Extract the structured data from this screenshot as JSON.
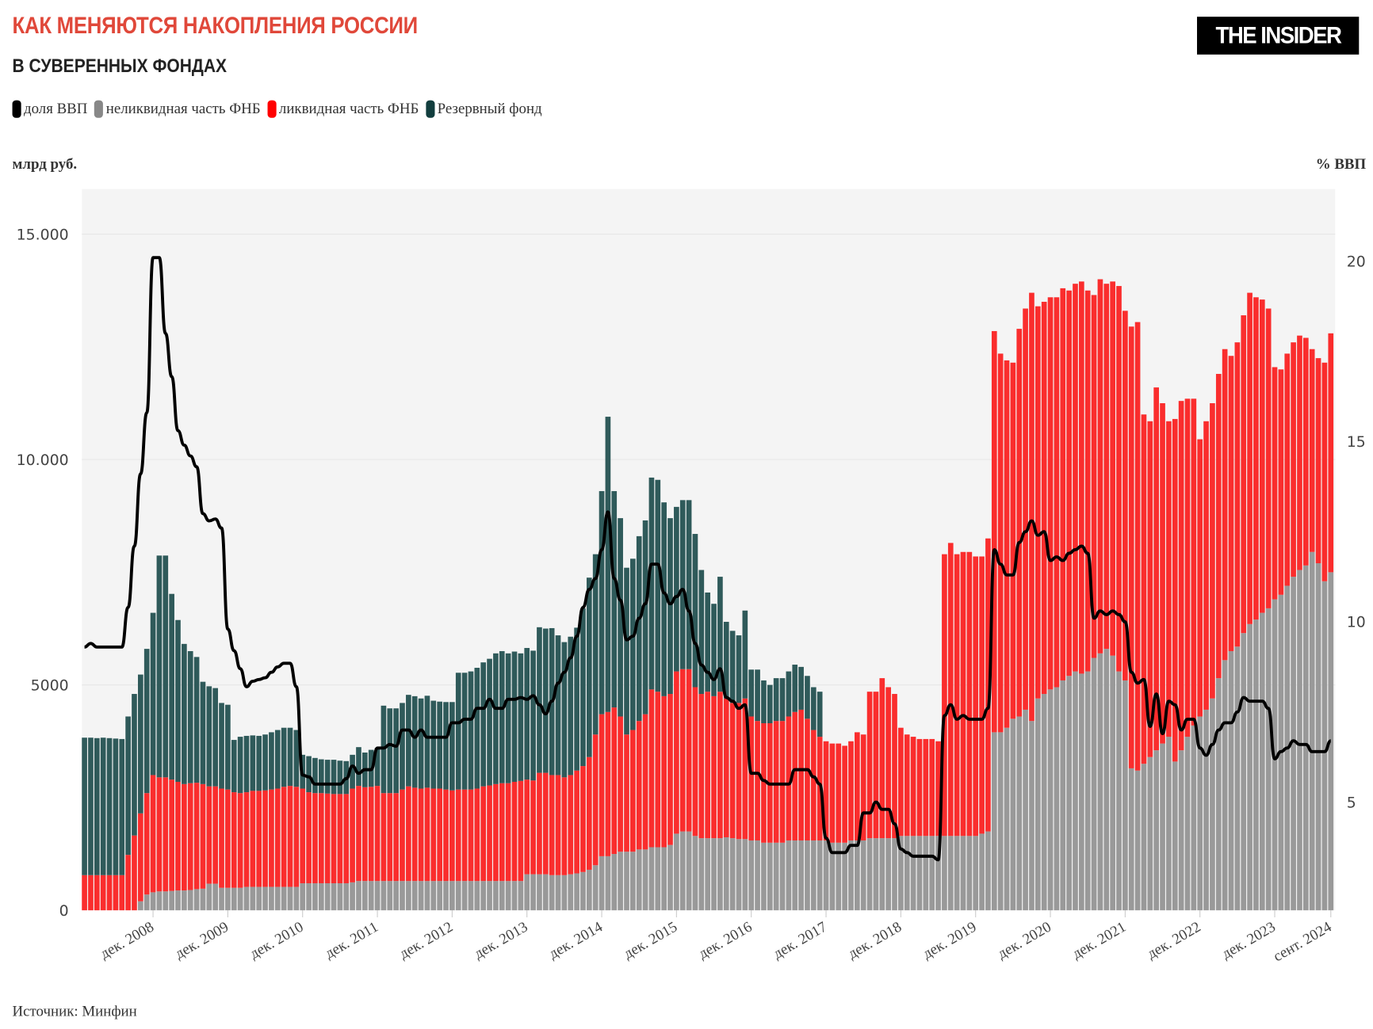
{
  "title": "КАК МЕНЯЮТСЯ НАКОПЛЕНИЯ РОССИИ",
  "subtitle": "В СУВЕРЕННЫХ ФОНДАХ",
  "logo": "THE INSIDER",
  "source": "Источник: Минфин",
  "colors": {
    "title": "#e0483a",
    "gdp": "#000000",
    "illiquid": "#999999",
    "liquid": "#fa2d2d",
    "reserve": "#2f5a5a",
    "plot_bg": "#f4f4f4"
  },
  "chart_data": {
    "type": "bar",
    "stacked": true,
    "legend": [
      "доля ВВП",
      "неликвидная часть ФНБ",
      "ликвидная часть ФНБ",
      "Резервный фонд"
    ],
    "legend_placement": "top-left",
    "ylabel": "млрд руб.",
    "y2label": "% ВВП",
    "ylim": [
      0,
      16000
    ],
    "y2lim": [
      2,
      22
    ],
    "yticks": [
      {
        "v": 0,
        "label": "0"
      },
      {
        "v": 5000,
        "label": "5000"
      },
      {
        "v": 10000,
        "label": "10.000"
      },
      {
        "v": 15000,
        "label": "15.000"
      }
    ],
    "y2ticks": [
      {
        "v": 5,
        "label": "5"
      },
      {
        "v": 10,
        "label": "10"
      },
      {
        "v": 15,
        "label": "15"
      },
      {
        "v": 20,
        "label": "20"
      }
    ],
    "xticks": [
      {
        "year": 2008,
        "month": 12,
        "label": "дек. 2008"
      },
      {
        "year": 2009,
        "month": 12,
        "label": "дек. 2009"
      },
      {
        "year": 2010,
        "month": 12,
        "label": "дек. 2010"
      },
      {
        "year": 2011,
        "month": 12,
        "label": "дек. 2011"
      },
      {
        "year": 2012,
        "month": 12,
        "label": "дек. 2012"
      },
      {
        "year": 2013,
        "month": 12,
        "label": "дек. 2013"
      },
      {
        "year": 2014,
        "month": 12,
        "label": "дек. 2014"
      },
      {
        "year": 2015,
        "month": 12,
        "label": "дек. 2015"
      },
      {
        "year": 2016,
        "month": 12,
        "label": "дек. 2016"
      },
      {
        "year": 2017,
        "month": 12,
        "label": "дек. 2017"
      },
      {
        "year": 2018,
        "month": 12,
        "label": "дек. 2018"
      },
      {
        "year": 2019,
        "month": 12,
        "label": "дек. 2019"
      },
      {
        "year": 2020,
        "month": 12,
        "label": "дек. 2020"
      },
      {
        "year": 2021,
        "month": 12,
        "label": "дек. 2021"
      },
      {
        "year": 2022,
        "month": 12,
        "label": "дек. 2022"
      },
      {
        "year": 2023,
        "month": 12,
        "label": "дек. 2023"
      },
      {
        "year": 2024,
        "month": 9,
        "label": "сент. 2024"
      }
    ],
    "grid": true,
    "monthly": [
      {
        "year": 2008,
        "illiquid": [
          0,
          0,
          0,
          0,
          0,
          0,
          0,
          0,
          0,
          200,
          350,
          400
        ],
        "liquid": [
          780,
          780,
          780,
          780,
          780,
          780,
          780,
          1230,
          1660,
          1950,
          2250,
          2600
        ],
        "reserve": [
          3050,
          3050,
          3040,
          3050,
          3040,
          3030,
          3020,
          3070,
          3140,
          3080,
          3200,
          3600
        ],
        "gdp_share": [
          9.3,
          9.4,
          9.3,
          9.3,
          9.3,
          9.3,
          9.3,
          10.4,
          12.1,
          14.1,
          15.8,
          20.1
        ]
      },
      {
        "year": 2009,
        "illiquid": [
          420,
          420,
          430,
          440,
          440,
          450,
          470,
          480,
          590,
          590,
          500,
          500
        ],
        "liquid": [
          2530,
          2530,
          2470,
          2410,
          2360,
          2370,
          2360,
          2320,
          2160,
          2160,
          2200,
          2180
        ],
        "reserve": [
          4920,
          4920,
          4120,
          3590,
          3110,
          2930,
          2790,
          2270,
          2220,
          2180,
          1900,
          1880
        ],
        "gdp_share": [
          20.1,
          18.0,
          16.8,
          15.3,
          14.9,
          14.6,
          14.3,
          13.0,
          12.8,
          12.85,
          12.6,
          9.8
        ]
      },
      {
        "year": 2010,
        "illiquid": [
          500,
          500,
          520,
          520,
          520,
          520,
          520,
          520,
          520,
          520,
          520,
          600
        ],
        "liquid": [
          2120,
          2100,
          2100,
          2130,
          2130,
          2140,
          2160,
          2180,
          2220,
          2240,
          2220,
          2100
        ],
        "reserve": [
          1160,
          1250,
          1250,
          1230,
          1220,
          1240,
          1270,
          1300,
          1310,
          1290,
          1260,
          750
        ],
        "gdp_share": [
          9.2,
          8.7,
          8.2,
          8.35,
          8.4,
          8.45,
          8.6,
          8.75,
          8.85,
          8.85,
          8.2,
          5.75
        ]
      },
      {
        "year": 2011,
        "illiquid": [
          600,
          600,
          600,
          600,
          600,
          600,
          600,
          620,
          650,
          650,
          650,
          650
        ],
        "liquid": [
          2020,
          2000,
          2000,
          1990,
          1980,
          1980,
          1980,
          2080,
          2110,
          2080,
          2090,
          2110
        ],
        "reserve": [
          800,
          780,
          750,
          750,
          760,
          740,
          730,
          750,
          860,
          770,
          820,
          840
        ],
        "gdp_share": [
          5.7,
          5.5,
          5.5,
          5.5,
          5.5,
          5.5,
          5.65,
          6.0,
          5.8,
          5.9,
          5.9,
          6.5
        ]
      },
      {
        "year": 2012,
        "illiquid": [
          650,
          650,
          650,
          650,
          650,
          650,
          650,
          650,
          650,
          650,
          650,
          650
        ],
        "liquid": [
          1950,
          1950,
          1950,
          2030,
          2100,
          2070,
          2050,
          2070,
          2050,
          2050,
          2030,
          2010
        ],
        "reserve": [
          1940,
          1880,
          1880,
          1920,
          2030,
          2030,
          2000,
          2040,
          1950,
          1930,
          1940,
          1960
        ],
        "gdp_share": [
          6.5,
          6.6,
          6.55,
          7.0,
          7.0,
          6.8,
          7.0,
          6.8,
          6.8,
          6.8,
          6.8,
          7.2
        ]
      },
      {
        "year": 2013,
        "illiquid": [
          650,
          650,
          650,
          650,
          650,
          650,
          650,
          650,
          650,
          650,
          650,
          800
        ],
        "liquid": [
          2030,
          2030,
          2030,
          2050,
          2100,
          2120,
          2150,
          2170,
          2170,
          2200,
          2220,
          2100
        ],
        "reserve": [
          2590,
          2590,
          2620,
          2680,
          2750,
          2810,
          2900,
          2930,
          2880,
          2890,
          2830,
          2920
        ],
        "gdp_share": [
          7.2,
          7.3,
          7.3,
          7.6,
          7.6,
          7.85,
          7.6,
          7.6,
          7.85,
          7.85,
          7.9,
          7.85
        ]
      },
      {
        "year": 2014,
        "illiquid": [
          800,
          800,
          800,
          780,
          780,
          780,
          800,
          820,
          850,
          900,
          1000,
          1200
        ],
        "liquid": [
          2080,
          2250,
          2250,
          2220,
          2220,
          2170,
          2200,
          2280,
          2350,
          2500,
          2900,
          3150
        ],
        "reserve": [
          2880,
          3230,
          3200,
          3260,
          3100,
          3000,
          3070,
          3170,
          3500,
          3980,
          4000,
          4950
        ],
        "gdp_share": [
          7.95,
          7.7,
          7.45,
          7.8,
          8.3,
          8.6,
          9.0,
          9.6,
          10.4,
          10.9,
          11.2,
          12.0
        ]
      },
      {
        "year": 2015,
        "illiquid": [
          1200,
          1250,
          1300,
          1300,
          1300,
          1350,
          1350,
          1400,
          1400,
          1400,
          1450,
          1700
        ],
        "liquid": [
          3200,
          3250,
          3000,
          2600,
          2700,
          2850,
          3000,
          3500,
          3450,
          3350,
          3350,
          3600
        ],
        "reserve": [
          6550,
          4800,
          4400,
          3700,
          3800,
          4100,
          4300,
          4700,
          4700,
          4300,
          3900,
          3650
        ],
        "gdp_share": [
          13.05,
          11.2,
          10.6,
          9.5,
          9.6,
          10.1,
          10.5,
          11.6,
          11.6,
          10.8,
          10.5,
          10.7
        ]
      },
      {
        "year": 2016,
        "illiquid": [
          1750,
          1750,
          1650,
          1600,
          1600,
          1600,
          1600,
          1620,
          1600,
          1580,
          1580,
          1550
        ],
        "liquid": [
          3600,
          3600,
          3300,
          3200,
          3250,
          3150,
          3250,
          3080,
          3000,
          3020,
          3120,
          2750
        ],
        "reserve": [
          3750,
          3750,
          3400,
          2750,
          2200,
          2050,
          2550,
          1700,
          1600,
          1500,
          1950,
          1040
        ],
        "gdp_share": [
          10.9,
          10.3,
          9.4,
          8.8,
          8.6,
          8.4,
          8.7,
          7.9,
          7.8,
          7.6,
          7.7,
          5.8
        ]
      },
      {
        "year": 2017,
        "illiquid": [
          1550,
          1500,
          1500,
          1500,
          1500,
          1550,
          1550,
          1550,
          1550,
          1550,
          1550,
          1550
        ],
        "liquid": [
          2650,
          2650,
          2650,
          2700,
          2700,
          2750,
          2850,
          2900,
          2700,
          2450,
          2300,
          2200
        ],
        "reserve": [
          1140,
          950,
          850,
          950,
          950,
          1000,
          1050,
          950,
          950,
          950,
          1000,
          0
        ],
        "gdp_share": [
          5.8,
          5.6,
          5.5,
          5.5,
          5.5,
          5.5,
          5.9,
          5.9,
          5.9,
          5.7,
          5.5,
          4.0
        ]
      },
      {
        "year": 2018,
        "illiquid": [
          1500,
          1500,
          1500,
          1550,
          1550,
          1550,
          1600,
          1600,
          1600,
          1600,
          1600,
          1650
        ],
        "liquid": [
          2200,
          2200,
          2150,
          2200,
          2400,
          2350,
          3250,
          3250,
          3550,
          3350,
          3200,
          2400
        ],
        "reserve": [
          0,
          0,
          0,
          0,
          0,
          0,
          0,
          0,
          0,
          0,
          0,
          0
        ],
        "gdp_share": [
          3.6,
          3.6,
          3.6,
          3.8,
          3.8,
          4.7,
          4.7,
          5.0,
          4.8,
          4.8,
          4.4,
          3.7
        ]
      },
      {
        "year": 2019,
        "illiquid": [
          1650,
          1650,
          1650,
          1650,
          1650,
          1650,
          1650,
          1650,
          1650,
          1650,
          1650,
          1650
        ],
        "liquid": [
          2250,
          2200,
          2150,
          2150,
          2150,
          2100,
          6250,
          6500,
          6250,
          6300,
          6300,
          6200
        ],
        "reserve": [
          0,
          0,
          0,
          0,
          0,
          0,
          0,
          0,
          0,
          0,
          0,
          0
        ],
        "gdp_share": [
          3.6,
          3.5,
          3.5,
          3.5,
          3.5,
          3.4,
          7.4,
          7.7,
          7.3,
          7.4,
          7.3,
          7.3
        ]
      },
      {
        "year": 2020,
        "illiquid": [
          1700,
          1750,
          3950,
          3950,
          4050,
          4250,
          4300,
          4450,
          4200,
          4700,
          4800,
          4900
        ],
        "liquid": [
          6150,
          6500,
          8900,
          8400,
          8150,
          7900,
          8600,
          8900,
          9500,
          8700,
          8700,
          8700
        ],
        "reserve": [
          0,
          0,
          0,
          0,
          0,
          0,
          0,
          0,
          0,
          0,
          0,
          0
        ],
        "gdp_share": [
          7.3,
          7.6,
          12.0,
          11.6,
          11.3,
          11.3,
          12.2,
          12.5,
          12.8,
          12.4,
          12.5,
          11.7
        ]
      },
      {
        "year": 2021,
        "illiquid": [
          4950,
          5100,
          5200,
          5300,
          5250,
          5300,
          5600,
          5700,
          5800,
          5650,
          5300,
          5100
        ],
        "liquid": [
          8650,
          8700,
          8550,
          8600,
          8700,
          8450,
          8050,
          8300,
          8100,
          8300,
          8550,
          8200
        ],
        "reserve": [
          0,
          0,
          0,
          0,
          0,
          0,
          0,
          0,
          0,
          0,
          0,
          0
        ],
        "gdp_share": [
          11.8,
          11.7,
          11.9,
          12.0,
          12.1,
          11.9,
          10.1,
          10.3,
          10.2,
          10.3,
          10.2,
          10.0
        ]
      },
      {
        "year": 2022,
        "illiquid": [
          3150,
          3100,
          3250,
          3400,
          3550,
          3700,
          3850,
          3300,
          3550,
          3850,
          4100,
          4300
        ],
        "liquid": [
          9800,
          9950,
          7750,
          7450,
          8050,
          7550,
          7000,
          7600,
          7750,
          7500,
          7250,
          6150
        ],
        "reserve": [
          0,
          0,
          0,
          0,
          0,
          0,
          0,
          0,
          0,
          0,
          0,
          0
        ],
        "gdp_share": [
          8.6,
          8.3,
          8.4,
          7.1,
          8.0,
          6.9,
          7.8,
          7.7,
          7.0,
          7.3,
          7.3,
          6.5
        ]
      },
      {
        "year": 2023,
        "illiquid": [
          4450,
          4700,
          5150,
          5550,
          5750,
          5850,
          6150,
          6350,
          6450,
          6600,
          6700,
          6900
        ],
        "liquid": [
          6400,
          6550,
          6750,
          6900,
          6550,
          6750,
          7050,
          7350,
          7150,
          6950,
          6650,
          5150
        ],
        "reserve": [
          0,
          0,
          0,
          0,
          0,
          0,
          0,
          0,
          0,
          0,
          0,
          0
        ],
        "gdp_share": [
          6.3,
          6.6,
          7.0,
          7.2,
          7.2,
          7.5,
          7.9,
          7.8,
          7.8,
          7.8,
          7.6,
          6.2
        ]
      },
      {
        "year": 2024,
        "illiquid": [
          7000,
          7200,
          7400,
          7550,
          7650,
          7950,
          7700,
          7300,
          7500
        ],
        "liquid": [
          5000,
          5150,
          5200,
          5200,
          5050,
          4500,
          4550,
          4850,
          5300
        ],
        "reserve": [
          0,
          0,
          0,
          0,
          0,
          0,
          0,
          0,
          0
        ],
        "gdp_share": [
          6.4,
          6.5,
          6.7,
          6.6,
          6.6,
          6.4,
          6.4,
          6.4,
          6.7
        ]
      }
    ]
  }
}
